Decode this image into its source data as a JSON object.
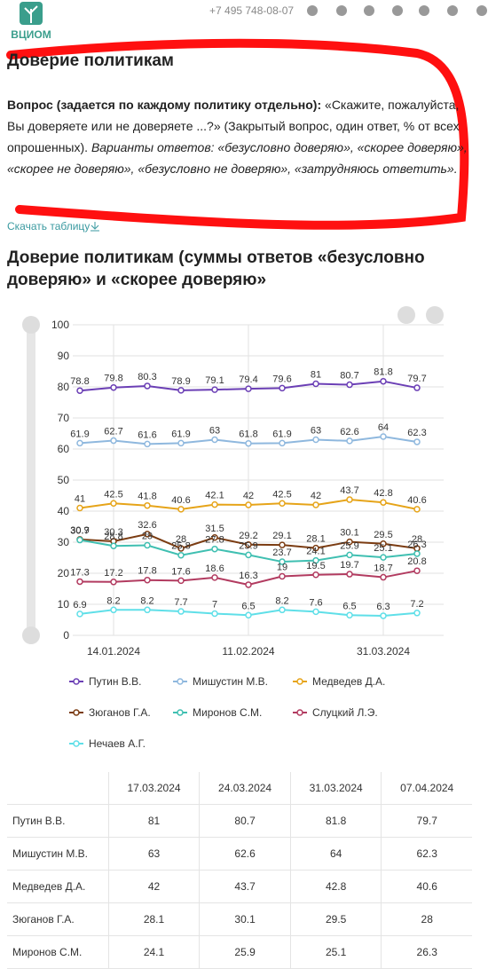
{
  "header": {
    "logo": "ВЦИОМ",
    "phone": "+7 495 748-08-07"
  },
  "heading": "Доверие политикам",
  "question": {
    "label": "Вопрос (задается по каждому политику отдельно):",
    "text": "«Скажите, пожалуйста, Вы доверяете или не доверяете ...?» (Закрытый вопрос, один ответ, % от всех опрошенных).",
    "options": "Варианты ответов: «безусловно доверяю», «скорее доверяю», «скорее не доверяю», «безусловно не доверяю», «затрудняюсь ответить»."
  },
  "download": "Скачать таблицу",
  "chart_data": {
    "type": "line",
    "title": "Доверие политикам (суммы ответов «безусловно доверяю» и «скорее доверяю»",
    "categories": [
      null,
      "14.01.2024",
      null,
      null,
      null,
      "11.02.2024",
      null,
      null,
      null,
      "31.03.2024",
      null
    ],
    "ylim": [
      0,
      100
    ],
    "yticks": [
      0,
      10,
      20,
      30,
      40,
      50,
      60,
      70,
      80,
      90,
      100
    ],
    "grid": true,
    "legend": "bottom",
    "series": [
      {
        "name": "Путин В.В.",
        "color": "#6b3fb5",
        "values": [
          78.8,
          79.8,
          80.3,
          78.9,
          79.1,
          79.4,
          79.6,
          81,
          80.7,
          81.8,
          79.7
        ]
      },
      {
        "name": "Мишустин М.В.",
        "color": "#8fb8de",
        "values": [
          61.9,
          62.7,
          61.6,
          61.9,
          63,
          61.8,
          61.9,
          63,
          62.6,
          64,
          62.3
        ]
      },
      {
        "name": "Медведев Д.А.",
        "color": "#e6a419",
        "values": [
          41,
          42.5,
          41.8,
          40.6,
          42.1,
          42,
          42.5,
          42,
          43.7,
          42.8,
          40.6
        ]
      },
      {
        "name": "Зюганов Г.А.",
        "color": "#7b3c12",
        "values": [
          30.9,
          30.3,
          32.6,
          28,
          31.5,
          29.2,
          29.1,
          28.1,
          30.1,
          29.5,
          28
        ]
      },
      {
        "name": "Миронов С.М.",
        "color": "#3fbfb1",
        "values": [
          30.7,
          28.8,
          29,
          25.8,
          27.8,
          25.9,
          23.7,
          24.1,
          25.9,
          25.1,
          26.3
        ]
      },
      {
        "name": "Слуцкий Л.Э.",
        "color": "#b23b60",
        "values": [
          17.3,
          17.2,
          17.8,
          17.6,
          18.6,
          16.3,
          19,
          19.5,
          19.7,
          18.7,
          20.8
        ]
      },
      {
        "name": "Нечаев А.Г.",
        "color": "#5fdfe8",
        "values": [
          6.9,
          8.2,
          8.2,
          7.7,
          7,
          6.5,
          8.2,
          7.6,
          6.5,
          6.3,
          7.2
        ]
      }
    ]
  },
  "table": {
    "header": [
      "17.03.2024",
      "24.03.2024",
      "31.03.2024",
      "07.04.2024"
    ],
    "rows": [
      [
        "Путин В.В.",
        81,
        80.7,
        81.8,
        79.7
      ],
      [
        "Мишустин М.В.",
        63,
        62.6,
        64,
        62.3
      ],
      [
        "Медведев Д.А.",
        42,
        43.7,
        42.8,
        40.6
      ],
      [
        "Зюганов Г.А.",
        28.1,
        30.1,
        29.5,
        28
      ],
      [
        "Миронов С.М.",
        24.1,
        25.9,
        25.1,
        26.3
      ]
    ]
  }
}
